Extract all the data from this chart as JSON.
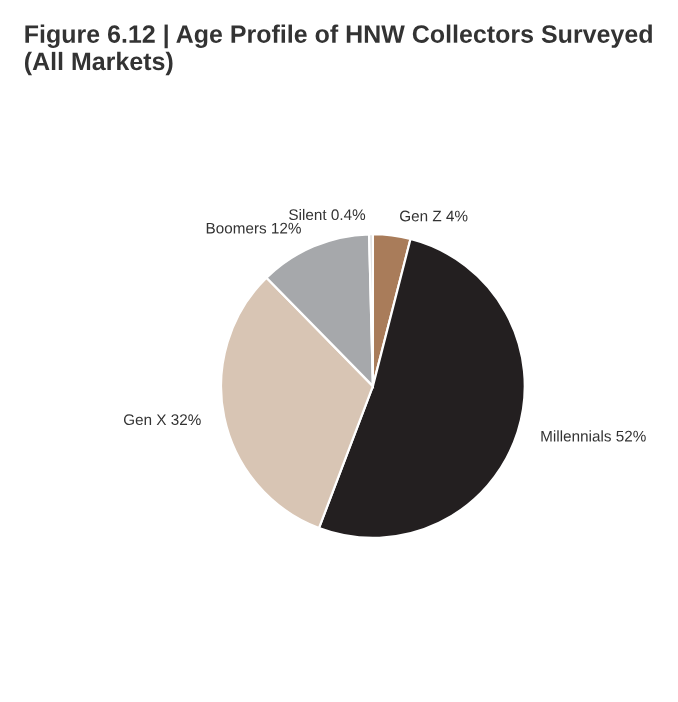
{
  "chart_data": {
    "type": "pie",
    "title": "Figure 6.12 | Age Profile of HNW Collectors Surveyed (All Markets)",
    "categories": [
      "Gen Z",
      "Millennials",
      "Gen X",
      "Boomers",
      "Silent"
    ],
    "values": [
      4,
      52,
      32,
      12,
      0.4
    ],
    "value_labels": [
      "4%",
      "52%",
      "32%",
      "12%",
      "0.4%"
    ],
    "colors": [
      "#a97c5a",
      "#231f20",
      "#d8c5b4",
      "#a6a8ab",
      "#dcdcdc"
    ]
  }
}
